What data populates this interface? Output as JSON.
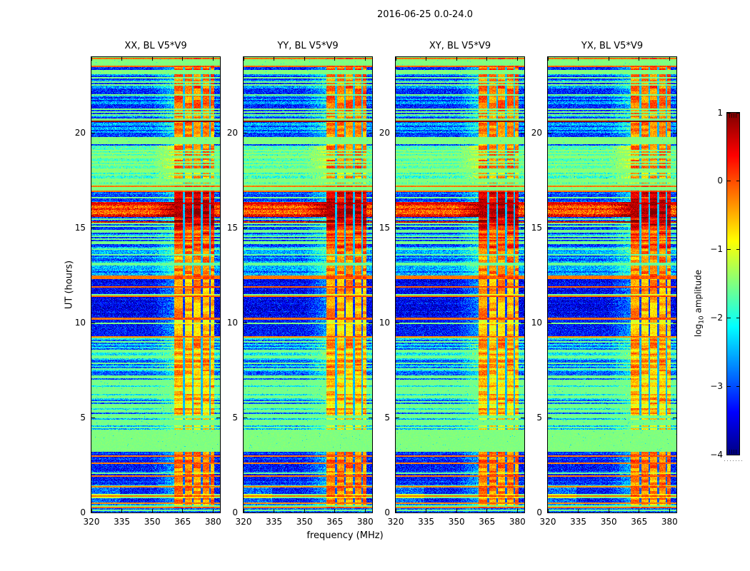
{
  "colors": {
    "background": "#ffffff",
    "frame": "#000000",
    "text": "#000000"
  },
  "chart_data": {
    "type": "heatmap",
    "title": "2016-06-25 0.0-24.0",
    "xlabel": "frequency (MHz)",
    "ylabel": "UT (hours)",
    "panels": [
      {
        "id": "xx",
        "title": "XX, BL V5*V9",
        "seed": 11
      },
      {
        "id": "yy",
        "title": "YY, BL V5*V9",
        "seed": 23
      },
      {
        "id": "xy",
        "title": "XY, BL V5*V9",
        "seed": 37
      },
      {
        "id": "yx",
        "title": "YX, BL V5*V9",
        "seed": 51
      }
    ],
    "x": {
      "range": [
        320,
        383.4
      ],
      "ticks": [
        320,
        335,
        350,
        365,
        380
      ],
      "tick_labels": [
        "320",
        "335",
        "350",
        "365",
        "380"
      ],
      "unit": "MHz"
    },
    "y": {
      "range": [
        0,
        24
      ],
      "ticks": [
        0,
        5,
        10,
        15,
        20
      ],
      "tick_labels": [
        "0",
        "5",
        "10",
        "15",
        "20"
      ],
      "unit": "hours"
    },
    "colorbar": {
      "label": "log10 amplitude",
      "label_parts": {
        "prefix": "log",
        "sub": "10",
        "suffix": " amplitude"
      },
      "range": [
        -4,
        1
      ],
      "ticks": [
        1,
        0,
        -1,
        -2,
        -3,
        -4
      ],
      "tick_labels": [
        "1",
        "0",
        "−1",
        "−2",
        "−3",
        "−4"
      ],
      "colormap": "jet"
    },
    "rfi_band": {
      "f_start": 360.8,
      "f_end": 380.6,
      "gap_centers": [
        365.6,
        370.0,
        374.4,
        378.4
      ],
      "gap_halfwidth": 0.45
    },
    "scan_lines": [
      {
        "t": 23.92,
        "v": -0.15,
        "w": 2
      },
      {
        "t": 23.5,
        "v": -0.1,
        "w": 2
      },
      {
        "t": 20.62,
        "v": 0.9,
        "w": 2
      },
      {
        "t": 17.2,
        "v": -0.2,
        "w": 2
      },
      {
        "t": 16.93,
        "v": -0.15,
        "w": 2
      },
      {
        "t": 16.3,
        "v": 0.5,
        "w": 2
      },
      {
        "t": 12.38,
        "v": -0.2,
        "w": 5
      },
      {
        "t": 11.9,
        "v": -0.1,
        "w": 2
      },
      {
        "t": 11.38,
        "v": -0.15,
        "w": 2
      },
      {
        "t": 10.2,
        "v": -0.2,
        "w": 3
      },
      {
        "t": 9.25,
        "v": -0.3,
        "w": 2
      },
      {
        "t": 2.98,
        "v": -0.2,
        "w": 2
      },
      {
        "t": 2.6,
        "v": -0.25,
        "w": 2
      },
      {
        "t": 1.9,
        "v": -0.2,
        "w": 2
      },
      {
        "t": 1.35,
        "v": -0.25,
        "w": 2
      },
      {
        "t": 0.85,
        "v": -0.2,
        "w": 2
      },
      {
        "t": 0.5,
        "v": -0.3,
        "w": 2
      },
      {
        "t": 0.28,
        "v": -0.2,
        "w": 2
      }
    ],
    "time_segments": [
      {
        "t0": 0.0,
        "t1": 0.28,
        "bg": -1.55,
        "stripe_p": 0.45,
        "stripe_v": -2.9,
        "rfi": "never"
      },
      {
        "t0": 0.28,
        "t1": 0.5,
        "bg": -1.55,
        "stripe_p": 0.7,
        "stripe_v": -2.7,
        "rfi": "stripe",
        "rfi_v": -0.6
      },
      {
        "t0": 0.5,
        "t1": 3.2,
        "bg": -1.55,
        "stripe_p": 0.96,
        "stripe_v": -3.3,
        "alt_v": -3.0,
        "rfi": "always",
        "rfi_v": -0.25,
        "solid": true,
        "low_freq_light": true
      },
      {
        "t0": 3.2,
        "t1": 4.35,
        "bg": -1.5,
        "stripe_p": 0.02,
        "stripe_v": -2.6,
        "rfi": "never"
      },
      {
        "t0": 4.35,
        "t1": 5.1,
        "bg": -1.55,
        "stripe_p": 0.3,
        "stripe_v": -2.5,
        "rfi": "stripe",
        "rfi_v": -0.8
      },
      {
        "t0": 5.1,
        "t1": 9.3,
        "bg": -1.55,
        "stripe_p": 0.62,
        "stripe_v": -2.9,
        "alt_v": -2.2,
        "rfi": "always",
        "rfi_v": -0.35
      },
      {
        "t0": 9.3,
        "t1": 10.2,
        "bg": -1.5,
        "stripe_p": 0.93,
        "stripe_v": -3.3,
        "rfi": "always",
        "rfi_v": -0.7,
        "solid": true
      },
      {
        "t0": 10.2,
        "t1": 12.35,
        "bg": -1.5,
        "stripe_p": 0.97,
        "stripe_v": -3.5,
        "alt_v": -3.3,
        "rfi": "always",
        "rfi_v": -0.5,
        "solid": true
      },
      {
        "t0": 12.35,
        "t1": 13.85,
        "bg": -1.6,
        "stripe_p": 0.85,
        "stripe_v": -2.5,
        "alt_v": -3.0,
        "rfi": "stripe",
        "rfi_v": -0.3
      },
      {
        "t0": 13.85,
        "t1": 15.05,
        "bg": -1.55,
        "stripe_p": 0.55,
        "stripe_v": -3.1,
        "alt_v": -2.4,
        "rfi": "always",
        "rfi_v": 0.25
      },
      {
        "t0": 15.05,
        "t1": 15.65,
        "bg": -1.5,
        "stripe_p": 0.75,
        "stripe_v": 0.55,
        "alt_v": -3.0,
        "alt_p": 0.45,
        "rfi": "always",
        "rfi_v": 0.8
      },
      {
        "t0": 15.65,
        "t1": 16.35,
        "bg": -0.9,
        "stripe_p": 0.9,
        "stripe_v": -0.15,
        "alt_v": 0.3,
        "rfi": "always",
        "rfi_v": 0.85
      },
      {
        "t0": 16.35,
        "t1": 16.92,
        "bg": -1.5,
        "stripe_p": 0.8,
        "stripe_v": -3.1,
        "alt_v": -2.8,
        "rfi": "always",
        "rfi_v": 0.6
      },
      {
        "t0": 16.92,
        "t1": 17.35,
        "bg": -1.5,
        "stripe_p": 0.05,
        "stripe_v": -2.8,
        "rfi": "never"
      },
      {
        "t0": 17.35,
        "t1": 17.95,
        "bg": -1.5,
        "stripe_p": 0.25,
        "stripe_v": -1.9,
        "rfi": "stripe",
        "rfi_v": -0.5
      },
      {
        "t0": 17.95,
        "t1": 19.35,
        "bg": -1.45,
        "stripe_p": 0.75,
        "stripe_v": -1.75,
        "alt_v": -2.1,
        "rfi": "stripe",
        "rfi_v": -0.3,
        "noise": 0.3
      },
      {
        "t0": 19.35,
        "t1": 21.3,
        "bg": -1.5,
        "stripe_p": 0.55,
        "stripe_v": -3.1,
        "alt_v": -2.5,
        "rfi": "stripe",
        "rfi_v": -0.3
      },
      {
        "t0": 21.3,
        "t1": 23.5,
        "bg": -1.5,
        "stripe_p": 0.72,
        "stripe_v": -3.2,
        "alt_v": -2.6,
        "rfi": "stripe",
        "rfi_v": -0.15
      },
      {
        "t0": 23.5,
        "t1": 24.0,
        "bg": -1.5,
        "stripe_p": 0.3,
        "stripe_v": -2.9,
        "rfi": "stripe",
        "rfi_v": -0.4
      }
    ]
  }
}
